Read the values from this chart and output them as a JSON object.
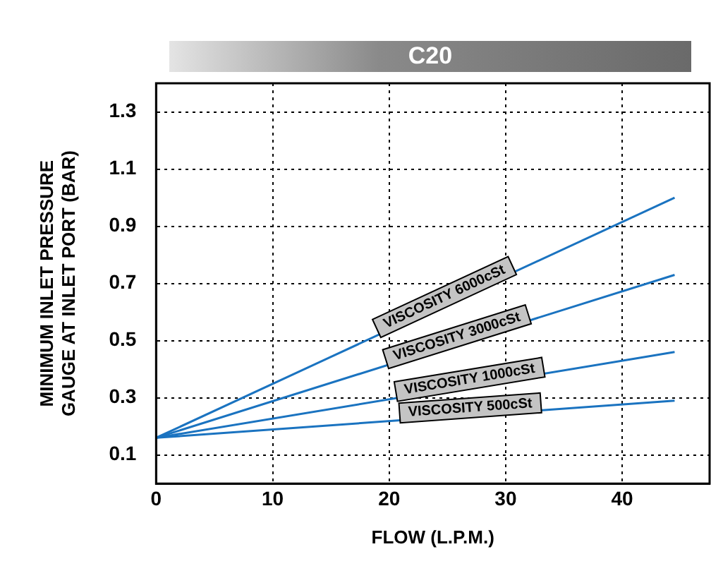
{
  "chart_data": {
    "type": "line",
    "title": "C20",
    "xlabel": "FLOW (L.P.M.)",
    "ylabel": "MINIMUM INLET PRESSURE\nGAUGE AT INLET PORT (BAR)",
    "x": [
      0,
      44.5
    ],
    "series": [
      {
        "color": "#1a73c0",
        "values": [
          0.16,
          1.0
        ]
      },
      {
        "color": "#1a73c0",
        "values": [
          0.16,
          0.73
        ]
      },
      {
        "color": "#1a73c0",
        "values": [
          0.16,
          0.46
        ]
      },
      {
        "color": "#1a73c0",
        "values": [
          0.16,
          0.29
        ]
      }
    ],
    "annotations": [
      {
        "text": "VISCOSITY 6000cSt",
        "x": 25,
        "y": 0.63
      },
      {
        "text": "VISCOSITY 3000cSt",
        "x": 26,
        "y": 0.49
      },
      {
        "text": "VISCOSITY 1000cSt",
        "x": 27,
        "y": 0.34
      },
      {
        "text": "VISCOSITY 500cSt",
        "x": 27,
        "y": 0.24
      }
    ],
    "xlim": [
      0,
      47.5
    ],
    "xticks": [
      0,
      10,
      20,
      30,
      40
    ],
    "ylim": [
      0,
      1.4
    ],
    "yticks": [
      0.1,
      0.3,
      0.5,
      0.7,
      0.9,
      1.1,
      1.3
    ],
    "grid": true,
    "legend": false,
    "marker": "none",
    "line_style": "solid"
  }
}
